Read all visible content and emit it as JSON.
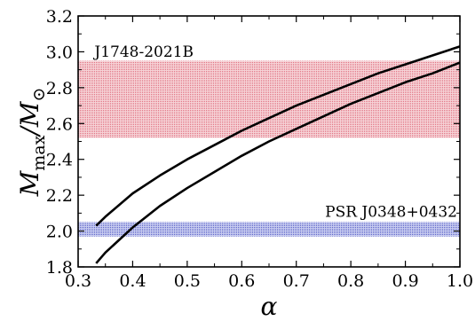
{
  "chart_data": {
    "type": "line",
    "xlabel": "α",
    "ylabel": {
      "base": "M",
      "sub": "max",
      "sep": "/",
      "base2": "M",
      "sub2": "⊙"
    },
    "xlim": [
      0.3,
      1.0
    ],
    "ylim": [
      1.8,
      3.2
    ],
    "xticks": [
      "0.3",
      "0.4",
      "0.5",
      "0.6",
      "0.7",
      "0.8",
      "0.9",
      "1.0"
    ],
    "yticks": [
      "1.8",
      "2.0",
      "2.2",
      "2.4",
      "2.6",
      "2.8",
      "3.0",
      "3.2"
    ],
    "bands": [
      {
        "label": "J1748-2021B",
        "y0": 2.52,
        "y1": 2.95,
        "color": "#e8a0a8"
      },
      {
        "label": "PSR J0348+0432",
        "y0": 1.97,
        "y1": 2.05,
        "color": "#8f95d8"
      }
    ],
    "series": [
      {
        "x": [
          0.333,
          0.35,
          0.4,
          0.45,
          0.5,
          0.55,
          0.6,
          0.65,
          0.7,
          0.75,
          0.8,
          0.85,
          0.9,
          0.95,
          1.0
        ],
        "y": [
          2.03,
          2.08,
          2.21,
          2.31,
          2.4,
          2.48,
          2.56,
          2.63,
          2.7,
          2.76,
          2.82,
          2.88,
          2.93,
          2.98,
          3.03
        ]
      },
      {
        "x": [
          0.333,
          0.35,
          0.4,
          0.45,
          0.5,
          0.55,
          0.6,
          0.65,
          0.7,
          0.75,
          0.8,
          0.85,
          0.9,
          0.95,
          1.0
        ],
        "y": [
          1.82,
          1.88,
          2.02,
          2.14,
          2.24,
          2.33,
          2.42,
          2.5,
          2.57,
          2.64,
          2.71,
          2.77,
          2.83,
          2.88,
          2.94
        ]
      }
    ],
    "grid": false,
    "legend": "none"
  }
}
